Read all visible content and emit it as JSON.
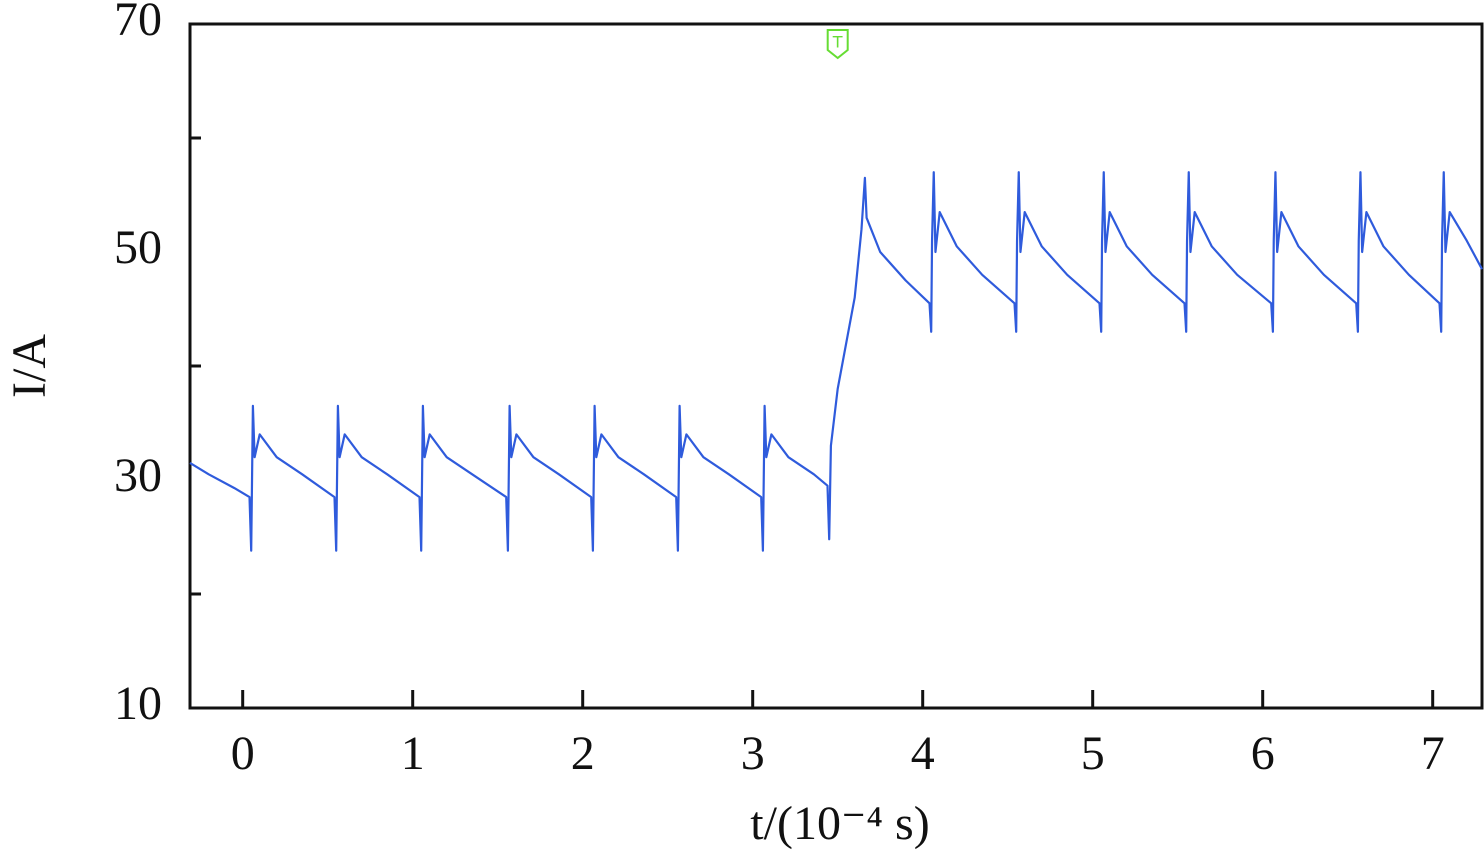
{
  "chart_data": {
    "type": "line",
    "xlabel": "t/(10⁻⁴ s)",
    "ylabel": "I/A",
    "xlim": [
      -0.31,
      7.29
    ],
    "ylim": [
      10,
      70
    ],
    "xticks": [
      0,
      1,
      2,
      3,
      4,
      5,
      6,
      7
    ],
    "yticks": [
      10,
      30,
      50,
      70
    ],
    "yminorticks": [
      20,
      40,
      60
    ],
    "color": "#2f5bdc",
    "annotation": {
      "text": "T",
      "x": 3.5,
      "color": "#66dd33"
    },
    "x": [
      -0.31,
      -0.2,
      -0.05,
      0.04,
      0.05,
      0.06,
      0.07,
      0.1,
      0.2,
      0.35,
      0.54,
      0.55,
      0.56,
      0.57,
      0.6,
      0.7,
      0.85,
      1.04,
      1.05,
      1.06,
      1.07,
      1.1,
      1.2,
      1.35,
      1.55,
      1.56,
      1.57,
      1.58,
      1.61,
      1.71,
      1.86,
      2.05,
      2.06,
      2.07,
      2.08,
      2.11,
      2.21,
      2.36,
      2.55,
      2.56,
      2.57,
      2.58,
      2.61,
      2.71,
      2.86,
      3.05,
      3.06,
      3.07,
      3.08,
      3.11,
      3.21,
      3.36,
      3.44,
      3.45,
      3.46,
      3.5,
      3.6,
      3.64,
      3.66,
      3.67,
      3.75,
      3.9,
      4.04,
      4.05,
      4.055,
      4.065,
      4.075,
      4.1,
      4.2,
      4.35,
      4.54,
      4.55,
      4.555,
      4.565,
      4.575,
      4.6,
      4.7,
      4.85,
      5.04,
      5.05,
      5.055,
      5.065,
      5.075,
      5.1,
      5.2,
      5.35,
      5.54,
      5.55,
      5.555,
      5.565,
      5.575,
      5.6,
      5.7,
      5.85,
      6.05,
      6.06,
      6.065,
      6.075,
      6.085,
      6.11,
      6.21,
      6.36,
      6.55,
      6.56,
      6.565,
      6.575,
      6.585,
      6.61,
      6.71,
      6.86,
      7.04,
      7.05,
      7.055,
      7.065,
      7.075,
      7.1,
      7.2,
      7.29
    ],
    "values": [
      31.5,
      30.5,
      29.3,
      28.5,
      23.8,
      36.5,
      32,
      34,
      32,
      30.5,
      28.5,
      23.8,
      36.5,
      32,
      34,
      32,
      30.5,
      28.5,
      23.8,
      36.5,
      32,
      34,
      32,
      30.5,
      28.5,
      23.8,
      36.5,
      32,
      34,
      32,
      30.5,
      28.5,
      23.8,
      36.5,
      32,
      34,
      32,
      30.5,
      28.5,
      23.8,
      36.5,
      32,
      34,
      32,
      30.5,
      28.5,
      23.8,
      36.5,
      32,
      34,
      32,
      30.5,
      29.5,
      24.8,
      33,
      38,
      46,
      52,
      56.5,
      53,
      50,
      47.5,
      45.5,
      43,
      51,
      57,
      50,
      53.5,
      50.5,
      48,
      45.5,
      43,
      51,
      57,
      50,
      53.5,
      50.5,
      48,
      45.5,
      43,
      51,
      57,
      50,
      53.5,
      50.5,
      48,
      45.5,
      43,
      51,
      57,
      50,
      53.5,
      50.5,
      48,
      45.5,
      43,
      51,
      57,
      50,
      53.5,
      50.5,
      48,
      45.5,
      43,
      51,
      57,
      50,
      53.5,
      50.5,
      48,
      45.5,
      43,
      51,
      57,
      50,
      53.5,
      51,
      48.5
    ]
  }
}
